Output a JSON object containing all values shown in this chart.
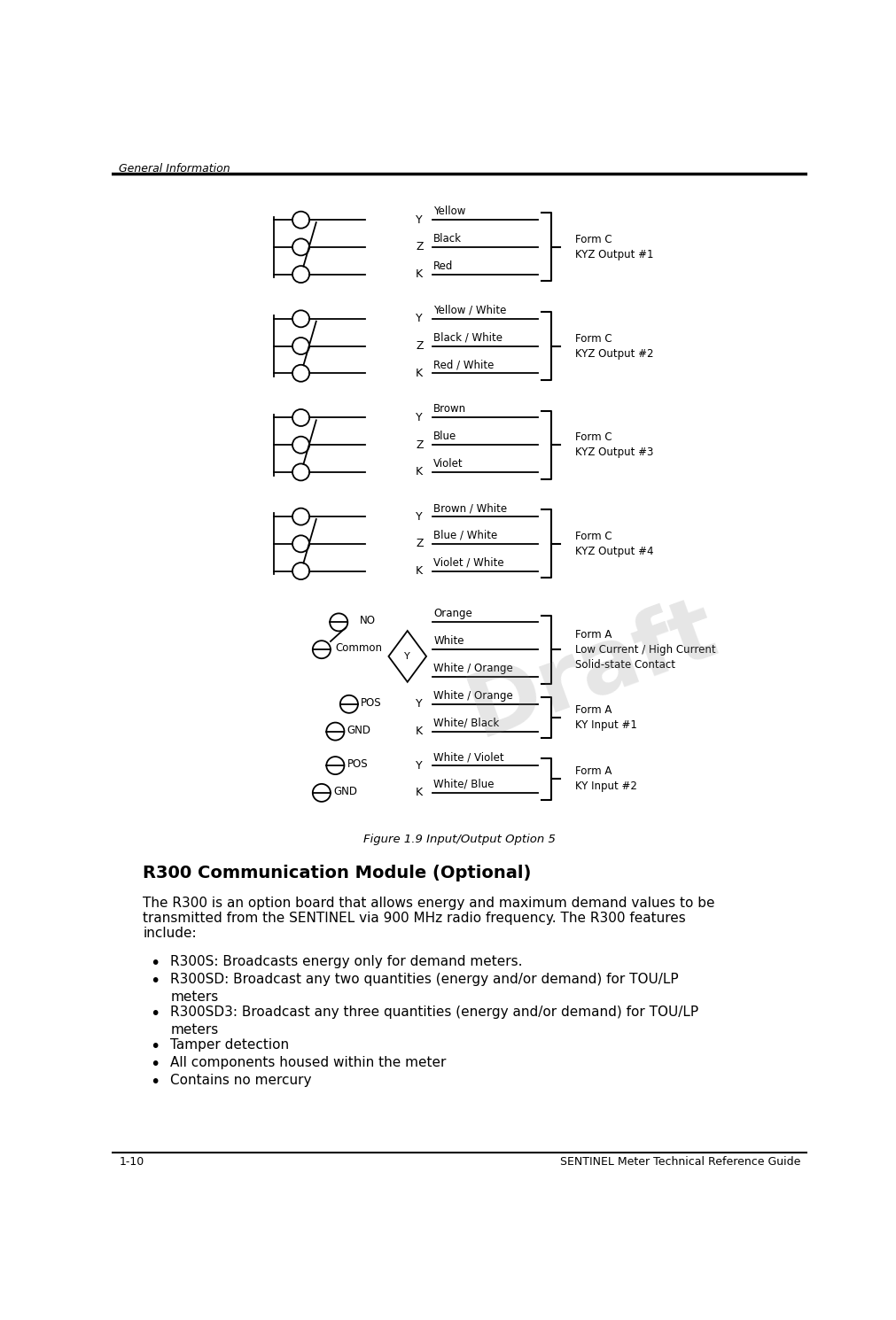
{
  "page_title": "General Information",
  "page_footer_left": "1-10",
  "page_footer_right": "SENTINEL Meter Technical Reference Guide",
  "figure_caption": "Figure 1.9 Input/Output Option 5",
  "section_title": "R300 Communication Module (Optional)",
  "section_body_lines": [
    "The R300 is an option board that allows energy and maximum demand values to be",
    "transmitted from the SENTINEL via 900 MHz radio frequency. The R300 features",
    "include:"
  ],
  "bullet_points": [
    [
      "R300S: Broadcasts energy only for demand meters."
    ],
    [
      "R300SD: Broadcast any two quantities (energy and/or demand) for TOU/LP",
      "meters"
    ],
    [
      "R300SD3: Broadcast any three quantities (energy and/or demand) for TOU/LP",
      "meters"
    ],
    [
      "Tamper detection"
    ],
    [
      "All components housed within the meter"
    ],
    [
      "Contains no mercury"
    ]
  ],
  "outputs_formc": [
    {
      "label": "Form C\nKYZ Output #1",
      "wires": [
        "Yellow",
        "Black",
        "Red"
      ],
      "pins": [
        "Y",
        "Z",
        "K"
      ]
    },
    {
      "label": "Form C\nKYZ Output #2",
      "wires": [
        "Yellow / White",
        "Black / White",
        "Red / White"
      ],
      "pins": [
        "Y",
        "Z",
        "K"
      ]
    },
    {
      "label": "Form C\nKYZ Output #3",
      "wires": [
        "Brown",
        "Blue",
        "Violet"
      ],
      "pins": [
        "Y",
        "Z",
        "K"
      ]
    },
    {
      "label": "Form C\nKYZ Output #4",
      "wires": [
        "Brown / White",
        "Blue / White",
        "Violet / White"
      ],
      "pins": [
        "Y",
        "Z",
        "K"
      ]
    }
  ],
  "output_forma": {
    "label": "Form A\nLow Current / High Current\nSolid-state Contact",
    "wires": [
      "Orange",
      "White",
      "White / Orange"
    ],
    "pins": [
      "NO",
      "Common"
    ]
  },
  "input_ky1": {
    "label": "Form A\nKY Input #1",
    "wires": [
      "White/ Black",
      "White / Violet"
    ],
    "pins": [
      "POS",
      "GND",
      "K",
      "Y"
    ]
  },
  "input_ky2": {
    "label": "Form A\nKY Input #2",
    "wires": [
      "White/ Blue"
    ],
    "pins": [
      "POS",
      "GND",
      "Y",
      "K"
    ]
  },
  "bg_color": "#ffffff",
  "line_color": "#000000",
  "text_color": "#000000"
}
